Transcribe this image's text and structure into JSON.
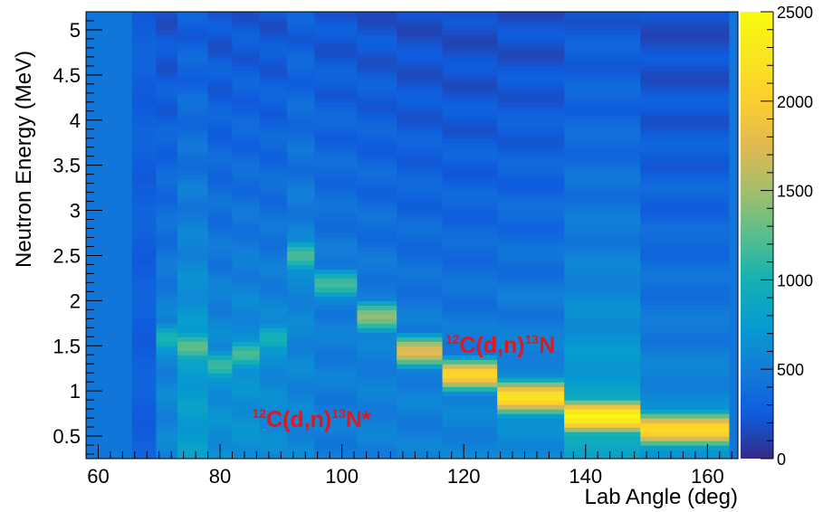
{
  "chart_data": {
    "type": "heatmap",
    "xlabel": "Lab Angle (deg)",
    "ylabel": "Neutron Energy (MeV)",
    "xlim": [
      58,
      165
    ],
    "ylim": [
      0.25,
      5.2
    ],
    "x_ticks": [
      "60",
      "80",
      "100",
      "120",
      "140",
      "160"
    ],
    "y_ticks": [
      "0.5",
      "1",
      "1.5",
      "2",
      "2.5",
      "3",
      "3.5",
      "4",
      "4.5",
      "5"
    ],
    "colorbar": {
      "min": 0,
      "max": 2500,
      "ticks": [
        "0",
        "500",
        "1000",
        "1500",
        "2000",
        "2500"
      ]
    },
    "annotations": [
      {
        "base": "C(d,n)",
        "sup1": "12",
        "sup2": "13",
        "tail": "N",
        "angle": 126,
        "energy": 1.42
      },
      {
        "base": "C(d,n)",
        "sup1": "12",
        "sup2": "13",
        "tail": "N*",
        "angle": 95,
        "energy": 0.6
      }
    ],
    "columns": [
      {
        "x0": 65.5,
        "x1": 69.5,
        "peak_e": null,
        "peak_v": 0,
        "base": 280
      },
      {
        "x0": 69.5,
        "x1": 73,
        "peak_e": 1.6,
        "peak_v": 1050,
        "base": 560
      },
      {
        "x0": 73,
        "x1": 78,
        "peak_e": 1.5,
        "peak_v": 1320,
        "base": 760
      },
      {
        "x0": 78,
        "x1": 82,
        "peak_e": 1.3,
        "peak_v": 1150,
        "base": 640
      },
      {
        "x0": 82,
        "x1": 86.5,
        "peak_e": 1.4,
        "peak_v": 1200,
        "base": 660
      },
      {
        "x0": 86.5,
        "x1": 91,
        "peak_e": 1.6,
        "peak_v": 1050,
        "base": 600
      },
      {
        "x0": 91,
        "x1": 95.5,
        "peak_e": 2.5,
        "peak_v": 1250,
        "base": 560
      },
      {
        "x0": 95.5,
        "x1": 102.5,
        "peak_e": 2.2,
        "peak_v": 1150,
        "base": 500
      },
      {
        "x0": 102.5,
        "x1": 109,
        "peak_e": 1.82,
        "peak_v": 1450,
        "base": 520
      },
      {
        "x0": 109,
        "x1": 116.5,
        "peak_e": 1.45,
        "peak_v": 1750,
        "base": 520
      },
      {
        "x0": 116.5,
        "x1": 125.5,
        "peak_e": 1.18,
        "peak_v": 2050,
        "base": 540
      },
      {
        "x0": 125.5,
        "x1": 136.5,
        "peak_e": 0.93,
        "peak_v": 2280,
        "base": 620
      },
      {
        "x0": 136.5,
        "x1": 149,
        "peak_e": 0.72,
        "peak_v": 2500,
        "base": 860
      },
      {
        "x0": 149,
        "x1": 163.5,
        "peak_e": 0.58,
        "peak_v": 2200,
        "base": 640
      }
    ]
  }
}
